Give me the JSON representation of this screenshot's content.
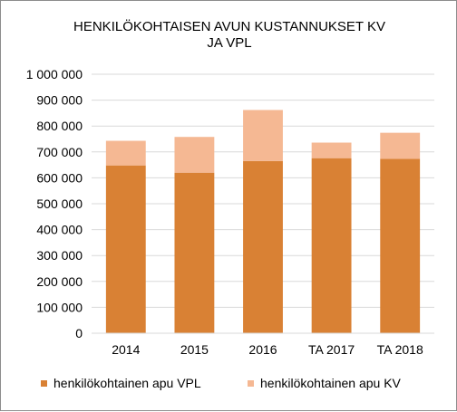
{
  "chart_data": {
    "type": "bar",
    "stacked": true,
    "title": [
      "HENKILÖKOHTAISEN  AVUN KUSTANNUKSET  KV",
      "JA VPL"
    ],
    "categories": [
      "2014",
      "2015",
      "2016",
      "TA 2017",
      "TA 2018"
    ],
    "series": [
      {
        "name": "henkilökohtainen apu VPL",
        "color": "#d98134",
        "values": [
          648000,
          620000,
          665000,
          676000,
          673000
        ]
      },
      {
        "name": "henkilökohtainen apu KV",
        "color": "#f5b893",
        "values": [
          95000,
          138000,
          197000,
          60000,
          101000
        ]
      }
    ],
    "ylim": [
      0,
      1000000
    ],
    "yticks": [
      0,
      100000,
      200000,
      300000,
      400000,
      500000,
      600000,
      700000,
      800000,
      900000,
      1000000
    ],
    "ytick_labels": [
      "0",
      "100 000",
      "200 000",
      "300 000",
      "400 000",
      "500 000",
      "600 000",
      "700 000",
      "800 000",
      "900 000",
      "1 000 000"
    ],
    "grid": true,
    "legend": "bottom",
    "colors": {
      "grid": "#d9d9d9",
      "border": "#8c8c8c",
      "text": "#000000"
    }
  }
}
